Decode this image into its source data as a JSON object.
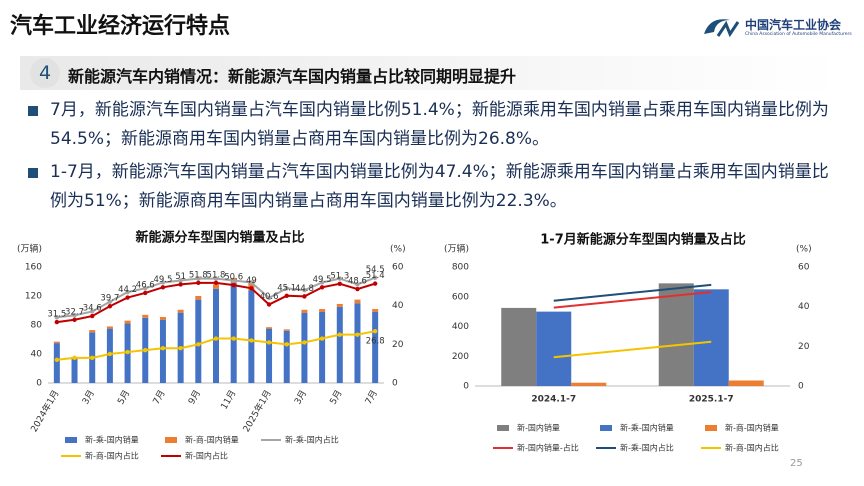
{
  "header": {
    "title": "汽车工业经济运行特点",
    "logo_name": "中国汽车工业协会",
    "logo_subtitle": "China Association of Automobile Manufacturers"
  },
  "section": {
    "number": "4",
    "title": "新能源汽车内销情况：新能源汽车国内销量占比较同期明显提升"
  },
  "bullets": [
    "7月，新能源汽车国内销量占汽车国内销量比例51.4%；新能源乘用车国内销量占乘用车国内销量比例为54.5%；新能源商用车国内销量占商用车国内销量比例为26.8%。",
    "1-7月，新能源汽车国内销量占汽车国内销量比例为47.4%；新能源乘用车国内销量占乘用车国内销量比例为51%；新能源商用车国内销量占商用车国内销量比例为22.3%。"
  ],
  "page_number": "25",
  "chart_data": [
    {
      "type": "bar",
      "title": "新能源分车型国内销量及占比",
      "y_label": "(万辆)",
      "y2_label": "(%)",
      "stacked": true,
      "markers": true,
      "grid": false,
      "categories": [
        "2024年1月",
        null,
        "3月",
        null,
        "5月",
        null,
        "7月",
        null,
        "9月",
        null,
        "11月",
        null,
        "2025年1月",
        null,
        "3月",
        null,
        "5月",
        null,
        "7月"
      ],
      "ylim": [
        0,
        160
      ],
      "yticks": [
        0,
        40,
        80,
        120,
        160
      ],
      "y2lim": [
        0,
        60
      ],
      "y2ticks": [
        0,
        20,
        40,
        60
      ],
      "series": [
        {
          "name": "新-乘-国内销量",
          "kind": "bar",
          "color": "#4472c4",
          "values": [
            55,
            35,
            70,
            75,
            82,
            90,
            87,
            97,
            115,
            130,
            138,
            128,
            75,
            72,
            97,
            98,
            105,
            110,
            98
          ]
        },
        {
          "name": "新-商-国内销量",
          "kind": "bar",
          "color": "#ed7d31",
          "values": [
            2,
            1,
            3,
            3,
            4,
            4,
            4,
            4,
            5,
            6,
            7,
            13,
            2,
            2,
            4,
            4,
            4,
            5,
            4
          ]
        },
        {
          "name": "新-乘-国内占比",
          "kind": "line",
          "axis": "y2",
          "color": "#a5a5a5",
          "data_labels": "last",
          "values": [
            34,
            35,
            37,
            42,
            47,
            49,
            52,
            53,
            54,
            54,
            53,
            52,
            44,
            49,
            48,
            52,
            54,
            51,
            54.5
          ]
        },
        {
          "name": "新-商-国内占比",
          "kind": "line",
          "axis": "y2",
          "color": "#f5c400",
          "data_labels": "last",
          "values": [
            12,
            13,
            13,
            15,
            16,
            17,
            18,
            18,
            20,
            23,
            23,
            22,
            21,
            20,
            21,
            23,
            25,
            25,
            26.8
          ]
        },
        {
          "name": "新-国内占比",
          "kind": "line",
          "axis": "y2",
          "color": "#c00000",
          "data_labels": "all",
          "values": [
            31.5,
            32.7,
            34.6,
            39.7,
            44.2,
            46.6,
            49.5,
            51,
            51.8,
            51.8,
            50.6,
            49,
            40.6,
            45.1,
            44.8,
            49.5,
            51.3,
            48.6,
            51.4
          ]
        }
      ]
    },
    {
      "type": "bar",
      "title": "1-7月新能源分车型国内销量及占比",
      "y_label": "(万辆)",
      "y2_label": "(%)",
      "stacked": false,
      "markers": false,
      "grid": false,
      "categories": [
        "2024.1-7",
        "2025.1-7"
      ],
      "ylim": [
        0,
        800
      ],
      "yticks": [
        0,
        200,
        400,
        600,
        800
      ],
      "y2lim": [
        0,
        60
      ],
      "y2ticks": [
        0,
        20,
        40,
        60
      ],
      "series": [
        {
          "name": "新-国内销量",
          "kind": "bar",
          "color": "#7f7f7f",
          "values": [
            525,
            690
          ]
        },
        {
          "name": "新-乘-国内销量",
          "kind": "bar",
          "color": "#4472c4",
          "values": [
            500,
            650
          ]
        },
        {
          "name": "新-商-国内销量",
          "kind": "bar",
          "color": "#ed7d31",
          "values": [
            22,
            37
          ]
        },
        {
          "name": "新-国内销量-占比",
          "kind": "line",
          "axis": "y2",
          "color": "#e03030",
          "values": [
            39.5,
            47.4
          ]
        },
        {
          "name": "新-乘-国内占比",
          "kind": "line",
          "axis": "y2",
          "color": "#1f4e79",
          "values": [
            43,
            51
          ]
        },
        {
          "name": "新-商-国内占比",
          "kind": "line",
          "axis": "y2",
          "color": "#f5c400",
          "values": [
            14.5,
            22.3
          ]
        }
      ]
    }
  ]
}
